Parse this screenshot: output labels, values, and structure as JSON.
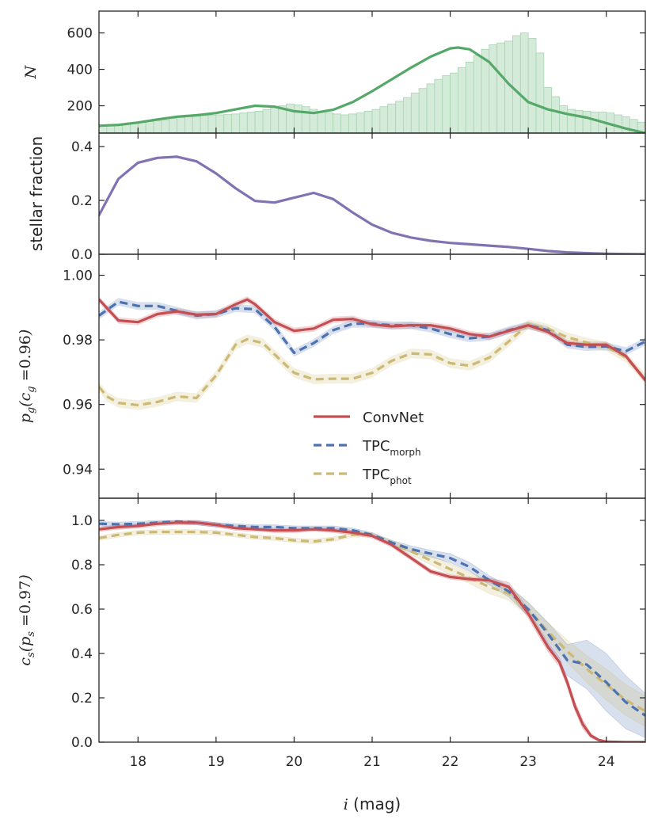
{
  "chart_data": [
    {
      "type": "bar+line",
      "title": "",
      "ylabel": "N",
      "xlim": [
        17.5,
        24.5
      ],
      "ylim": [
        50,
        720
      ],
      "yticks": [
        200,
        400,
        600
      ],
      "colors": {
        "line": "#55a868",
        "bar_fill": "#d5ebd9",
        "bar_edge": "#a9d3b3"
      },
      "hist": {
        "x_start": 17.5,
        "bin_width": 0.1,
        "values": [
          95,
          97,
          98,
          102,
          105,
          108,
          112,
          118,
          122,
          130,
          135,
          140,
          143,
          146,
          148,
          150,
          152,
          155,
          160,
          165,
          170,
          180,
          190,
          200,
          210,
          205,
          195,
          180,
          165,
          160,
          155,
          150,
          155,
          160,
          170,
          180,
          195,
          210,
          225,
          245,
          270,
          295,
          320,
          345,
          365,
          380,
          410,
          440,
          475,
          510,
          535,
          545,
          555,
          585,
          600,
          570,
          490,
          300,
          250,
          200,
          180,
          175,
          170,
          165,
          165,
          160,
          150,
          140,
          125,
          110
        ]
      },
      "series": [
        {
          "name": "kde",
          "x": [
            17.5,
            17.75,
            18,
            18.25,
            18.5,
            18.75,
            19,
            19.25,
            19.5,
            19.75,
            20,
            20.25,
            20.5,
            20.75,
            21,
            21.25,
            21.5,
            21.75,
            22,
            22.1,
            22.25,
            22.5,
            22.75,
            23,
            23.25,
            23.5,
            23.75,
            24,
            24.25,
            24.5
          ],
          "y": [
            90,
            95,
            108,
            125,
            140,
            148,
            160,
            180,
            200,
            195,
            170,
            160,
            178,
            220,
            280,
            345,
            410,
            470,
            515,
            520,
            510,
            440,
            320,
            220,
            180,
            155,
            135,
            105,
            75,
            50
          ]
        }
      ]
    },
    {
      "type": "line",
      "ylabel": "stellar fraction",
      "xlim": [
        17.5,
        24.5
      ],
      "ylim": [
        0.0,
        0.45
      ],
      "yticks": [
        0.0,
        0.2,
        0.4
      ],
      "yticklabels": [
        "0.0",
        "0.2",
        "0.4"
      ],
      "colors": {
        "line": "#8172b2"
      },
      "series": [
        {
          "name": "stellar fraction",
          "x": [
            17.5,
            17.75,
            18,
            18.25,
            18.5,
            18.75,
            19,
            19.25,
            19.5,
            19.75,
            20,
            20.25,
            20.5,
            20.75,
            21,
            21.25,
            21.5,
            21.75,
            22,
            22.25,
            22.5,
            22.75,
            23,
            23.25,
            23.5,
            23.75,
            24,
            24.25,
            24.5
          ],
          "y": [
            0.145,
            0.28,
            0.34,
            0.358,
            0.362,
            0.345,
            0.3,
            0.245,
            0.198,
            0.192,
            0.21,
            0.228,
            0.205,
            0.155,
            0.11,
            0.08,
            0.062,
            0.05,
            0.042,
            0.037,
            0.032,
            0.027,
            0.02,
            0.012,
            0.007,
            0.004,
            0.002,
            0.001,
            0.0
          ]
        }
      ]
    },
    {
      "type": "line",
      "ylabel": "p_g(c_g=0.96)",
      "xlim": [
        17.5,
        24.5
      ],
      "ylim": [
        0.931,
        1.0065
      ],
      "yticks": [
        0.94,
        0.96,
        0.98,
        1.0
      ],
      "yticklabels": [
        "0.94",
        "0.96",
        "0.98",
        "1.00"
      ],
      "legend": {
        "position": "lower-center",
        "entries": [
          {
            "label": "ConvNet",
            "sub": "",
            "style": "solid",
            "color": "#c44e52"
          },
          {
            "label": "TPC",
            "sub": "morph",
            "style": "dashed",
            "color": "#4c72b0"
          },
          {
            "label": "TPC",
            "sub": "phot",
            "style": "dashed",
            "color": "#ccb974"
          }
        ]
      },
      "series": [
        {
          "name": "ConvNet",
          "color": "#c44e52",
          "style": "solid",
          "band": 0.001,
          "x": [
            17.5,
            17.75,
            18,
            18.25,
            18.5,
            18.75,
            19,
            19.25,
            19.4,
            19.5,
            19.75,
            20,
            20.25,
            20.5,
            20.75,
            21,
            21.25,
            21.5,
            21.75,
            22,
            22.25,
            22.5,
            22.75,
            23,
            23.25,
            23.5,
            23.75,
            24,
            24.25,
            24.5
          ],
          "y": [
            0.9925,
            0.986,
            0.9855,
            0.988,
            0.9888,
            0.9878,
            0.988,
            0.991,
            0.9925,
            0.991,
            0.9855,
            0.9828,
            0.9835,
            0.9862,
            0.9865,
            0.9848,
            0.9842,
            0.9845,
            0.9845,
            0.9835,
            0.9818,
            0.981,
            0.9828,
            0.9845,
            0.9825,
            0.979,
            0.9785,
            0.9785,
            0.975,
            0.9675
          ]
        },
        {
          "name": "TPC_morph",
          "color": "#4c72b0",
          "style": "dashed",
          "band": 0.0012,
          "x": [
            17.5,
            17.75,
            18,
            18.25,
            18.5,
            18.75,
            19,
            19.25,
            19.5,
            19.75,
            20,
            20.25,
            20.5,
            20.75,
            21,
            21.25,
            21.5,
            21.75,
            22,
            22.25,
            22.5,
            22.75,
            23,
            23.25,
            23.5,
            23.75,
            24,
            24.25,
            24.5
          ],
          "y": [
            0.9875,
            0.9918,
            0.9905,
            0.9905,
            0.989,
            0.9875,
            0.988,
            0.9898,
            0.9895,
            0.984,
            0.976,
            0.979,
            0.983,
            0.985,
            0.985,
            0.9845,
            0.9845,
            0.9835,
            0.9818,
            0.9805,
            0.981,
            0.983,
            0.9845,
            0.983,
            0.9785,
            0.9778,
            0.978,
            0.9765,
            0.9795
          ]
        },
        {
          "name": "TPC_phot",
          "color": "#ccb974",
          "style": "dashed",
          "band": 0.0015,
          "x": [
            17.5,
            17.6,
            17.75,
            18,
            18.25,
            18.5,
            18.75,
            19,
            19.25,
            19.4,
            19.6,
            19.75,
            20,
            20.25,
            20.5,
            20.75,
            21,
            21.25,
            21.5,
            21.75,
            22,
            22.25,
            22.5,
            22.75,
            23,
            23.25,
            23.5,
            23.75,
            24,
            24.25,
            24.5
          ],
          "y": [
            0.9655,
            0.9625,
            0.9605,
            0.9598,
            0.9608,
            0.9625,
            0.962,
            0.969,
            0.9785,
            0.9802,
            0.979,
            0.9755,
            0.9698,
            0.9678,
            0.968,
            0.968,
            0.9698,
            0.9735,
            0.9758,
            0.9755,
            0.9728,
            0.972,
            0.9745,
            0.9795,
            0.9848,
            0.9835,
            0.9808,
            0.9792,
            0.978,
            0.9745,
            0.968
          ]
        }
      ]
    },
    {
      "type": "line",
      "ylabel": "c_s(p_s=0.97)",
      "xlabel": "i (mag)",
      "xlim": [
        17.5,
        24.5
      ],
      "ylim": [
        0.0,
        1.1
      ],
      "xticks": [
        18,
        19,
        20,
        21,
        22,
        23,
        24
      ],
      "xticklabels": [
        "18",
        "19",
        "20",
        "21",
        "22",
        "23",
        "24"
      ],
      "yticks": [
        0.0,
        0.2,
        0.4,
        0.6,
        0.8,
        1.0
      ],
      "yticklabels": [
        "0.0",
        "0.2",
        "0.4",
        "0.6",
        "0.8",
        "1.0"
      ],
      "series": [
        {
          "name": "ConvNet",
          "color": "#c44e52",
          "style": "solid",
          "x": [
            17.5,
            17.75,
            18,
            18.25,
            18.5,
            18.75,
            19,
            19.25,
            19.5,
            19.75,
            20,
            20.25,
            20.5,
            20.75,
            21,
            21.25,
            21.5,
            21.75,
            22,
            22.25,
            22.5,
            22.75,
            23,
            23.1,
            23.25,
            23.4,
            23.5,
            23.6,
            23.7,
            23.8,
            23.9,
            24,
            24.25,
            24.5
          ],
          "y": [
            0.96,
            0.97,
            0.975,
            0.985,
            0.99,
            0.99,
            0.98,
            0.965,
            0.96,
            0.955,
            0.955,
            0.96,
            0.955,
            0.945,
            0.93,
            0.89,
            0.83,
            0.77,
            0.745,
            0.735,
            0.73,
            0.7,
            0.58,
            0.52,
            0.43,
            0.36,
            0.27,
            0.16,
            0.08,
            0.03,
            0.01,
            0.002,
            0.0,
            0.0
          ],
          "band_lo": [
            0.95,
            0.96,
            0.965,
            0.975,
            0.98,
            0.98,
            0.97,
            0.955,
            0.95,
            0.945,
            0.945,
            0.95,
            0.945,
            0.935,
            0.92,
            0.88,
            0.82,
            0.76,
            0.735,
            0.725,
            0.72,
            0.68,
            0.56,
            0.5,
            0.41,
            0.34,
            0.25,
            0.14,
            0.06,
            0.02,
            0.005,
            0.0,
            0.0,
            0.0
          ],
          "band_hi": [
            0.97,
            0.98,
            0.985,
            0.995,
            1.0,
            1.0,
            0.99,
            0.975,
            0.97,
            0.965,
            0.965,
            0.97,
            0.965,
            0.955,
            0.94,
            0.9,
            0.84,
            0.78,
            0.755,
            0.745,
            0.74,
            0.72,
            0.6,
            0.54,
            0.45,
            0.38,
            0.29,
            0.18,
            0.1,
            0.04,
            0.015,
            0.004,
            0.0,
            0.0
          ]
        },
        {
          "name": "TPC_morph",
          "color": "#4c72b0",
          "style": "dashed",
          "x": [
            17.5,
            17.75,
            18,
            18.25,
            18.5,
            18.75,
            19,
            19.25,
            19.5,
            19.75,
            20,
            20.25,
            20.5,
            20.75,
            21,
            21.25,
            21.5,
            21.75,
            22,
            22.25,
            22.5,
            22.75,
            23,
            23.25,
            23.5,
            23.75,
            24,
            24.25,
            24.5
          ],
          "y": [
            0.985,
            0.982,
            0.985,
            0.99,
            0.995,
            0.99,
            0.98,
            0.975,
            0.97,
            0.97,
            0.965,
            0.965,
            0.965,
            0.955,
            0.935,
            0.9,
            0.87,
            0.85,
            0.83,
            0.79,
            0.73,
            0.68,
            0.6,
            0.49,
            0.37,
            0.35,
            0.27,
            0.18,
            0.12
          ],
          "band_lo": [
            0.975,
            0.972,
            0.975,
            0.98,
            0.985,
            0.98,
            0.97,
            0.965,
            0.96,
            0.96,
            0.955,
            0.955,
            0.955,
            0.945,
            0.925,
            0.89,
            0.855,
            0.835,
            0.81,
            0.77,
            0.71,
            0.655,
            0.57,
            0.44,
            0.3,
            0.24,
            0.14,
            0.06,
            0.02
          ],
          "band_hi": [
            0.995,
            0.992,
            0.995,
            1.0,
            1.0,
            1.0,
            0.99,
            0.985,
            0.98,
            0.98,
            0.975,
            0.975,
            0.975,
            0.965,
            0.945,
            0.91,
            0.885,
            0.865,
            0.85,
            0.81,
            0.75,
            0.705,
            0.63,
            0.54,
            0.44,
            0.46,
            0.4,
            0.3,
            0.22
          ]
        },
        {
          "name": "TPC_phot",
          "color": "#ccb974",
          "style": "dashed",
          "x": [
            17.5,
            17.75,
            18,
            18.25,
            18.5,
            18.75,
            19,
            19.25,
            19.5,
            19.75,
            20,
            20.25,
            20.5,
            20.75,
            21,
            21.25,
            21.5,
            21.75,
            22,
            22.25,
            22.5,
            22.75,
            23,
            23.25,
            23.5,
            23.75,
            24,
            24.25,
            24.5
          ],
          "y": [
            0.92,
            0.935,
            0.945,
            0.948,
            0.948,
            0.948,
            0.945,
            0.935,
            0.925,
            0.92,
            0.91,
            0.905,
            0.915,
            0.935,
            0.935,
            0.9,
            0.86,
            0.82,
            0.78,
            0.74,
            0.7,
            0.67,
            0.6,
            0.5,
            0.41,
            0.33,
            0.26,
            0.19,
            0.14
          ],
          "band_lo": [
            0.91,
            0.925,
            0.935,
            0.938,
            0.938,
            0.938,
            0.935,
            0.925,
            0.915,
            0.91,
            0.9,
            0.895,
            0.905,
            0.925,
            0.925,
            0.89,
            0.845,
            0.8,
            0.755,
            0.715,
            0.67,
            0.64,
            0.57,
            0.46,
            0.36,
            0.27,
            0.19,
            0.12,
            0.07
          ],
          "band_hi": [
            0.93,
            0.945,
            0.955,
            0.958,
            0.958,
            0.958,
            0.955,
            0.945,
            0.935,
            0.93,
            0.92,
            0.915,
            0.925,
            0.945,
            0.945,
            0.91,
            0.875,
            0.84,
            0.805,
            0.765,
            0.73,
            0.7,
            0.63,
            0.54,
            0.46,
            0.39,
            0.33,
            0.26,
            0.21
          ]
        }
      ]
    }
  ]
}
